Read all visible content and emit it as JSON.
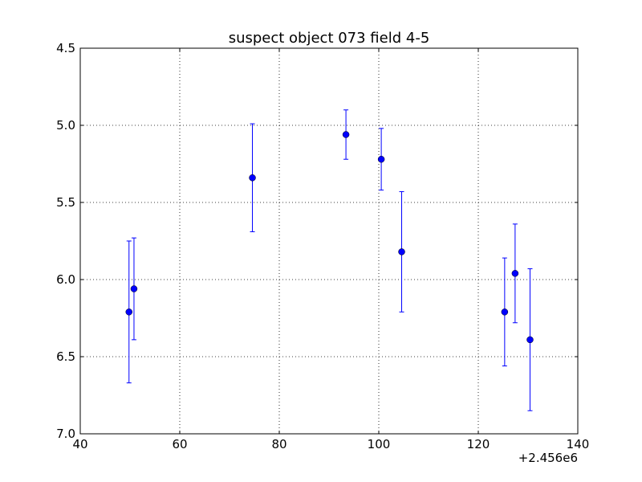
{
  "chart_data": {
    "type": "scatter",
    "title": "suspect object 073 field 4-5",
    "xlabel": "",
    "ylabel": "",
    "x_offset_label": "+2.456e6",
    "xlim": [
      40,
      140
    ],
    "ylim": [
      4.5,
      7.0
    ],
    "y_inverted": true,
    "grid": true,
    "x_ticks": [
      "40",
      "60",
      "80",
      "100",
      "120",
      "140"
    ],
    "y_ticks": [
      "4.5",
      "5.0",
      "5.5",
      "6.0",
      "6.5",
      "7.0"
    ],
    "marker_color": "#0000ff",
    "errorbar_color": "#0000ff",
    "points": [
      {
        "x": 49.8,
        "y": 6.21,
        "yerr": 0.46
      },
      {
        "x": 50.8,
        "y": 6.06,
        "yerr": 0.33
      },
      {
        "x": 74.6,
        "y": 5.34,
        "yerr": 0.35
      },
      {
        "x": 93.4,
        "y": 5.06,
        "yerr": 0.16
      },
      {
        "x": 100.5,
        "y": 5.22,
        "yerr": 0.2
      },
      {
        "x": 104.6,
        "y": 5.82,
        "yerr": 0.39
      },
      {
        "x": 125.3,
        "y": 6.21,
        "yerr": 0.35
      },
      {
        "x": 127.4,
        "y": 5.96,
        "yerr": 0.32
      },
      {
        "x": 130.4,
        "y": 6.39,
        "yerr": 0.46
      }
    ]
  }
}
